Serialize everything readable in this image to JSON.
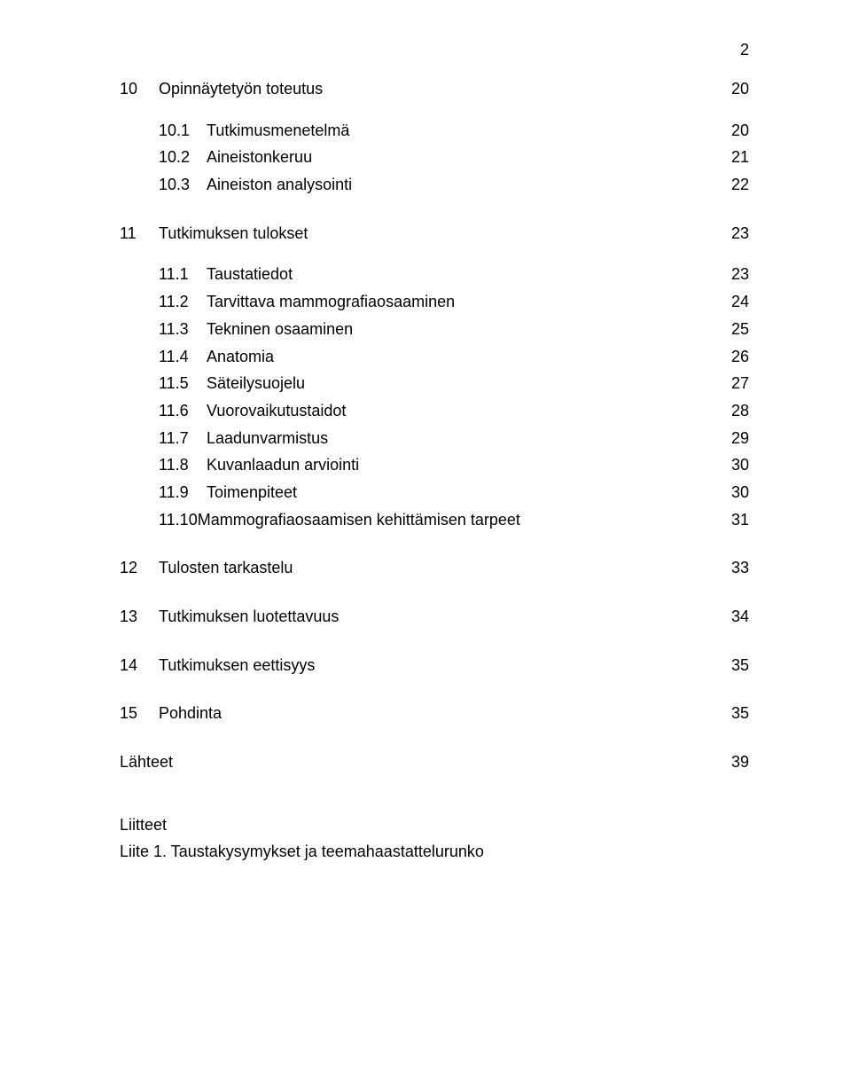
{
  "page_number": "2",
  "rows": [
    {
      "type": "h1",
      "num": "10",
      "title": "Opinnäytetyön toteutus",
      "pg": "20"
    },
    {
      "type": "h2",
      "num": "10.1",
      "title": "Tutkimusmenetelmä",
      "pg": "20"
    },
    {
      "type": "h2",
      "num": "10.2",
      "title": "Aineistonkeruu",
      "pg": "21"
    },
    {
      "type": "h2",
      "num": "10.3",
      "title": "Aineiston analysointi",
      "pg": "22"
    },
    {
      "type": "h1",
      "num": "11",
      "title": "Tutkimuksen tulokset",
      "pg": "23"
    },
    {
      "type": "h2",
      "num": "11.1",
      "title": "Taustatiedot",
      "pg": "23"
    },
    {
      "type": "h2",
      "num": "11.2",
      "title": "Tarvittava mammografiaosaaminen",
      "pg": "24"
    },
    {
      "type": "h2",
      "num": "11.3",
      "title": "Tekninen osaaminen",
      "pg": "25"
    },
    {
      "type": "h2",
      "num": "11.4",
      "title": "Anatomia",
      "pg": "26"
    },
    {
      "type": "h2",
      "num": "11.5",
      "title": "Säteilysuojelu",
      "pg": "27"
    },
    {
      "type": "h2",
      "num": "11.6",
      "title": "Vuorovaikutustaidot",
      "pg": "28"
    },
    {
      "type": "h2",
      "num": "11.7",
      "title": "Laadunvarmistus",
      "pg": "29"
    },
    {
      "type": "h2",
      "num": "11.8",
      "title": "Kuvanlaadun arviointi",
      "pg": "30"
    },
    {
      "type": "h2",
      "num": "11.9",
      "title": "Toimenpiteet",
      "pg": "30"
    },
    {
      "type": "h2",
      "num": "11.10",
      "title": "Mammografiaosaamisen kehittämisen tarpeet",
      "pg": "31",
      "tight_num": true
    },
    {
      "type": "h1",
      "num": "12",
      "title": "Tulosten tarkastelu",
      "pg": "33"
    },
    {
      "type": "h1",
      "num": "13",
      "title": "Tutkimuksen luotettavuus",
      "pg": "34"
    },
    {
      "type": "h1",
      "num": "14",
      "title": "Tutkimuksen eettisyys",
      "pg": "35"
    },
    {
      "type": "h1",
      "num": "15",
      "title": "Pohdinta",
      "pg": "35"
    },
    {
      "type": "h1",
      "num": "",
      "title": "Lähteet",
      "pg": "39",
      "nonum": true
    }
  ],
  "appendix": {
    "heading": "Liitteet",
    "item": "Liite 1. Taustakysymykset ja teemahaastattelurunko"
  }
}
